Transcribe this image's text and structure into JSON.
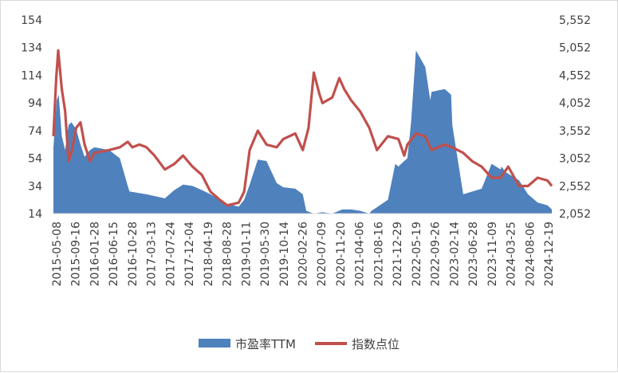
{
  "chart_data": {
    "type": "area+line",
    "title": "",
    "xlabel": "",
    "ylabel_left": "",
    "ylabel_right": "",
    "ylim_left": [
      14,
      154
    ],
    "yticks_left": [
      14,
      34,
      54,
      74,
      94,
      114,
      134,
      154
    ],
    "ylim_right": [
      2052,
      5552
    ],
    "yticks_right": [
      2052,
      2552,
      3052,
      3552,
      4052,
      4552,
      5052,
      5552
    ],
    "x_tick_labels": [
      "2015-05-08",
      "2015-09-16",
      "2016-01-28",
      "2016-06-15",
      "2016-10-28",
      "2017-03-13",
      "2017-07-24",
      "2017-12-04",
      "2018-04-19",
      "2018-08-28",
      "2019-01-11",
      "2019-05-30",
      "2019-10-14",
      "2020-02-26",
      "2020-07-09",
      "2020-11-20",
      "2021-04-06",
      "2021-08-16",
      "2021-12-29",
      "2022-05-19",
      "2022-09-26",
      "2023-02-14",
      "2023-06-28",
      "2023-11-09",
      "2024-03-25",
      "2024-08-06",
      "2024-12-19"
    ],
    "grid": false,
    "legend_position": "bottom",
    "series": [
      {
        "name": "市盈率TTM",
        "kind": "area",
        "axis": "left",
        "color": "#4f81bd",
        "x": [
          "2015-05-08",
          "2015-06-01",
          "2015-06-15",
          "2015-07-08",
          "2015-08-01",
          "2015-08-26",
          "2015-09-16",
          "2015-10-20",
          "2015-11-20",
          "2015-12-20",
          "2016-01-28",
          "2016-03-01",
          "2016-06-15",
          "2016-09-01",
          "2016-10-28",
          "2016-11-10",
          "2017-03-13",
          "2017-07-24",
          "2017-10-01",
          "2017-12-04",
          "2018-02-10",
          "2018-04-19",
          "2018-06-20",
          "2018-08-28",
          "2018-10-20",
          "2019-01-11",
          "2019-02-20",
          "2019-04-01",
          "2019-05-30",
          "2019-08-01",
          "2019-10-14",
          "2019-12-01",
          "2020-02-26",
          "2020-04-20",
          "2020-05-15",
          "2020-07-09",
          "2020-09-10",
          "2020-11-20",
          "2021-02-01",
          "2021-04-06",
          "2021-06-10",
          "2021-08-16",
          "2021-09-01",
          "2021-10-01",
          "2021-12-29",
          "2022-02-20",
          "2022-03-15",
          "2022-04-26",
          "2022-05-19",
          "2022-06-15",
          "2022-07-20",
          "2022-09-26",
          "2022-11-01",
          "2022-11-10",
          "2023-02-14",
          "2023-04-01",
          "2023-04-10",
          "2023-06-28",
          "2023-11-09",
          "2024-01-20",
          "2024-03-25",
          "2024-04-01",
          "2024-05-01",
          "2024-08-06",
          "2024-10-10",
          "2024-12-19",
          "2025-03-01",
          "2025-04-01"
        ],
        "values": [
          62,
          96,
          100,
          70,
          60,
          78,
          80,
          75,
          64,
          55,
          60,
          62,
          60,
          54,
          34,
          30,
          28,
          25,
          31,
          35,
          34,
          31,
          28,
          24,
          21,
          19,
          24,
          35,
          53,
          52,
          36,
          33,
          32,
          28,
          16,
          14,
          15,
          14,
          17,
          17,
          16,
          14,
          16,
          18,
          24,
          50,
          48,
          52,
          54,
          80,
          132,
          120,
          96,
          102,
          104,
          100,
          78,
          28,
          32,
          50,
          46,
          48,
          44,
          38,
          28,
          22,
          20,
          17
        ]
      },
      {
        "name": "指数点位",
        "kind": "line",
        "axis": "right",
        "color": "#c0504d",
        "x": [
          "2015-05-08",
          "2015-05-28",
          "2015-06-12",
          "2015-07-08",
          "2015-08-01",
          "2015-08-26",
          "2015-09-16",
          "2015-10-20",
          "2015-11-20",
          "2015-12-20",
          "2016-01-28",
          "2016-03-01",
          "2016-06-15",
          "2016-09-01",
          "2016-10-28",
          "2016-12-01",
          "2017-01-20",
          "2017-03-13",
          "2017-05-10",
          "2017-07-24",
          "2017-10-01",
          "2017-12-04",
          "2018-02-10",
          "2018-04-19",
          "2018-06-20",
          "2018-08-28",
          "2018-10-20",
          "2019-01-11",
          "2019-02-20",
          "2019-04-01",
          "2019-05-30",
          "2019-08-01",
          "2019-10-14",
          "2019-12-01",
          "2020-02-26",
          "2020-04-20",
          "2020-06-01",
          "2020-07-09",
          "2020-08-20",
          "2020-09-10",
          "2020-11-20",
          "2021-01-10",
          "2021-02-15",
          "2021-04-06",
          "2021-06-10",
          "2021-08-16",
          "2021-10-10",
          "2021-12-29",
          "2022-03-15",
          "2022-04-26",
          "2022-05-19",
          "2022-07-20",
          "2022-09-26",
          "2022-11-10",
          "2023-02-14",
          "2023-04-10",
          "2023-06-28",
          "2023-09-01",
          "2023-11-09",
          "2024-01-20",
          "2024-03-25",
          "2024-05-20",
          "2024-08-06",
          "2024-10-10",
          "2024-12-19",
          "2025-03-01",
          "2025-04-01"
        ],
        "values": [
          3450,
          4500,
          5000,
          4300,
          3900,
          3000,
          3150,
          3600,
          3700,
          3300,
          3000,
          3150,
          3200,
          3250,
          3350,
          3250,
          3300,
          3250,
          3100,
          2850,
          2950,
          3100,
          2900,
          2750,
          2450,
          2300,
          2200,
          2250,
          2450,
          3200,
          3550,
          3300,
          3250,
          3400,
          3500,
          3200,
          3600,
          4600,
          4200,
          4050,
          4150,
          4500,
          4300,
          4100,
          3900,
          3600,
          3200,
          3450,
          3400,
          3100,
          3300,
          3500,
          3450,
          3200,
          3300,
          3250,
          3150,
          3000,
          2900,
          2700,
          2700,
          2900,
          2550,
          2550,
          2700,
          2650,
          2550
        ]
      }
    ]
  }
}
